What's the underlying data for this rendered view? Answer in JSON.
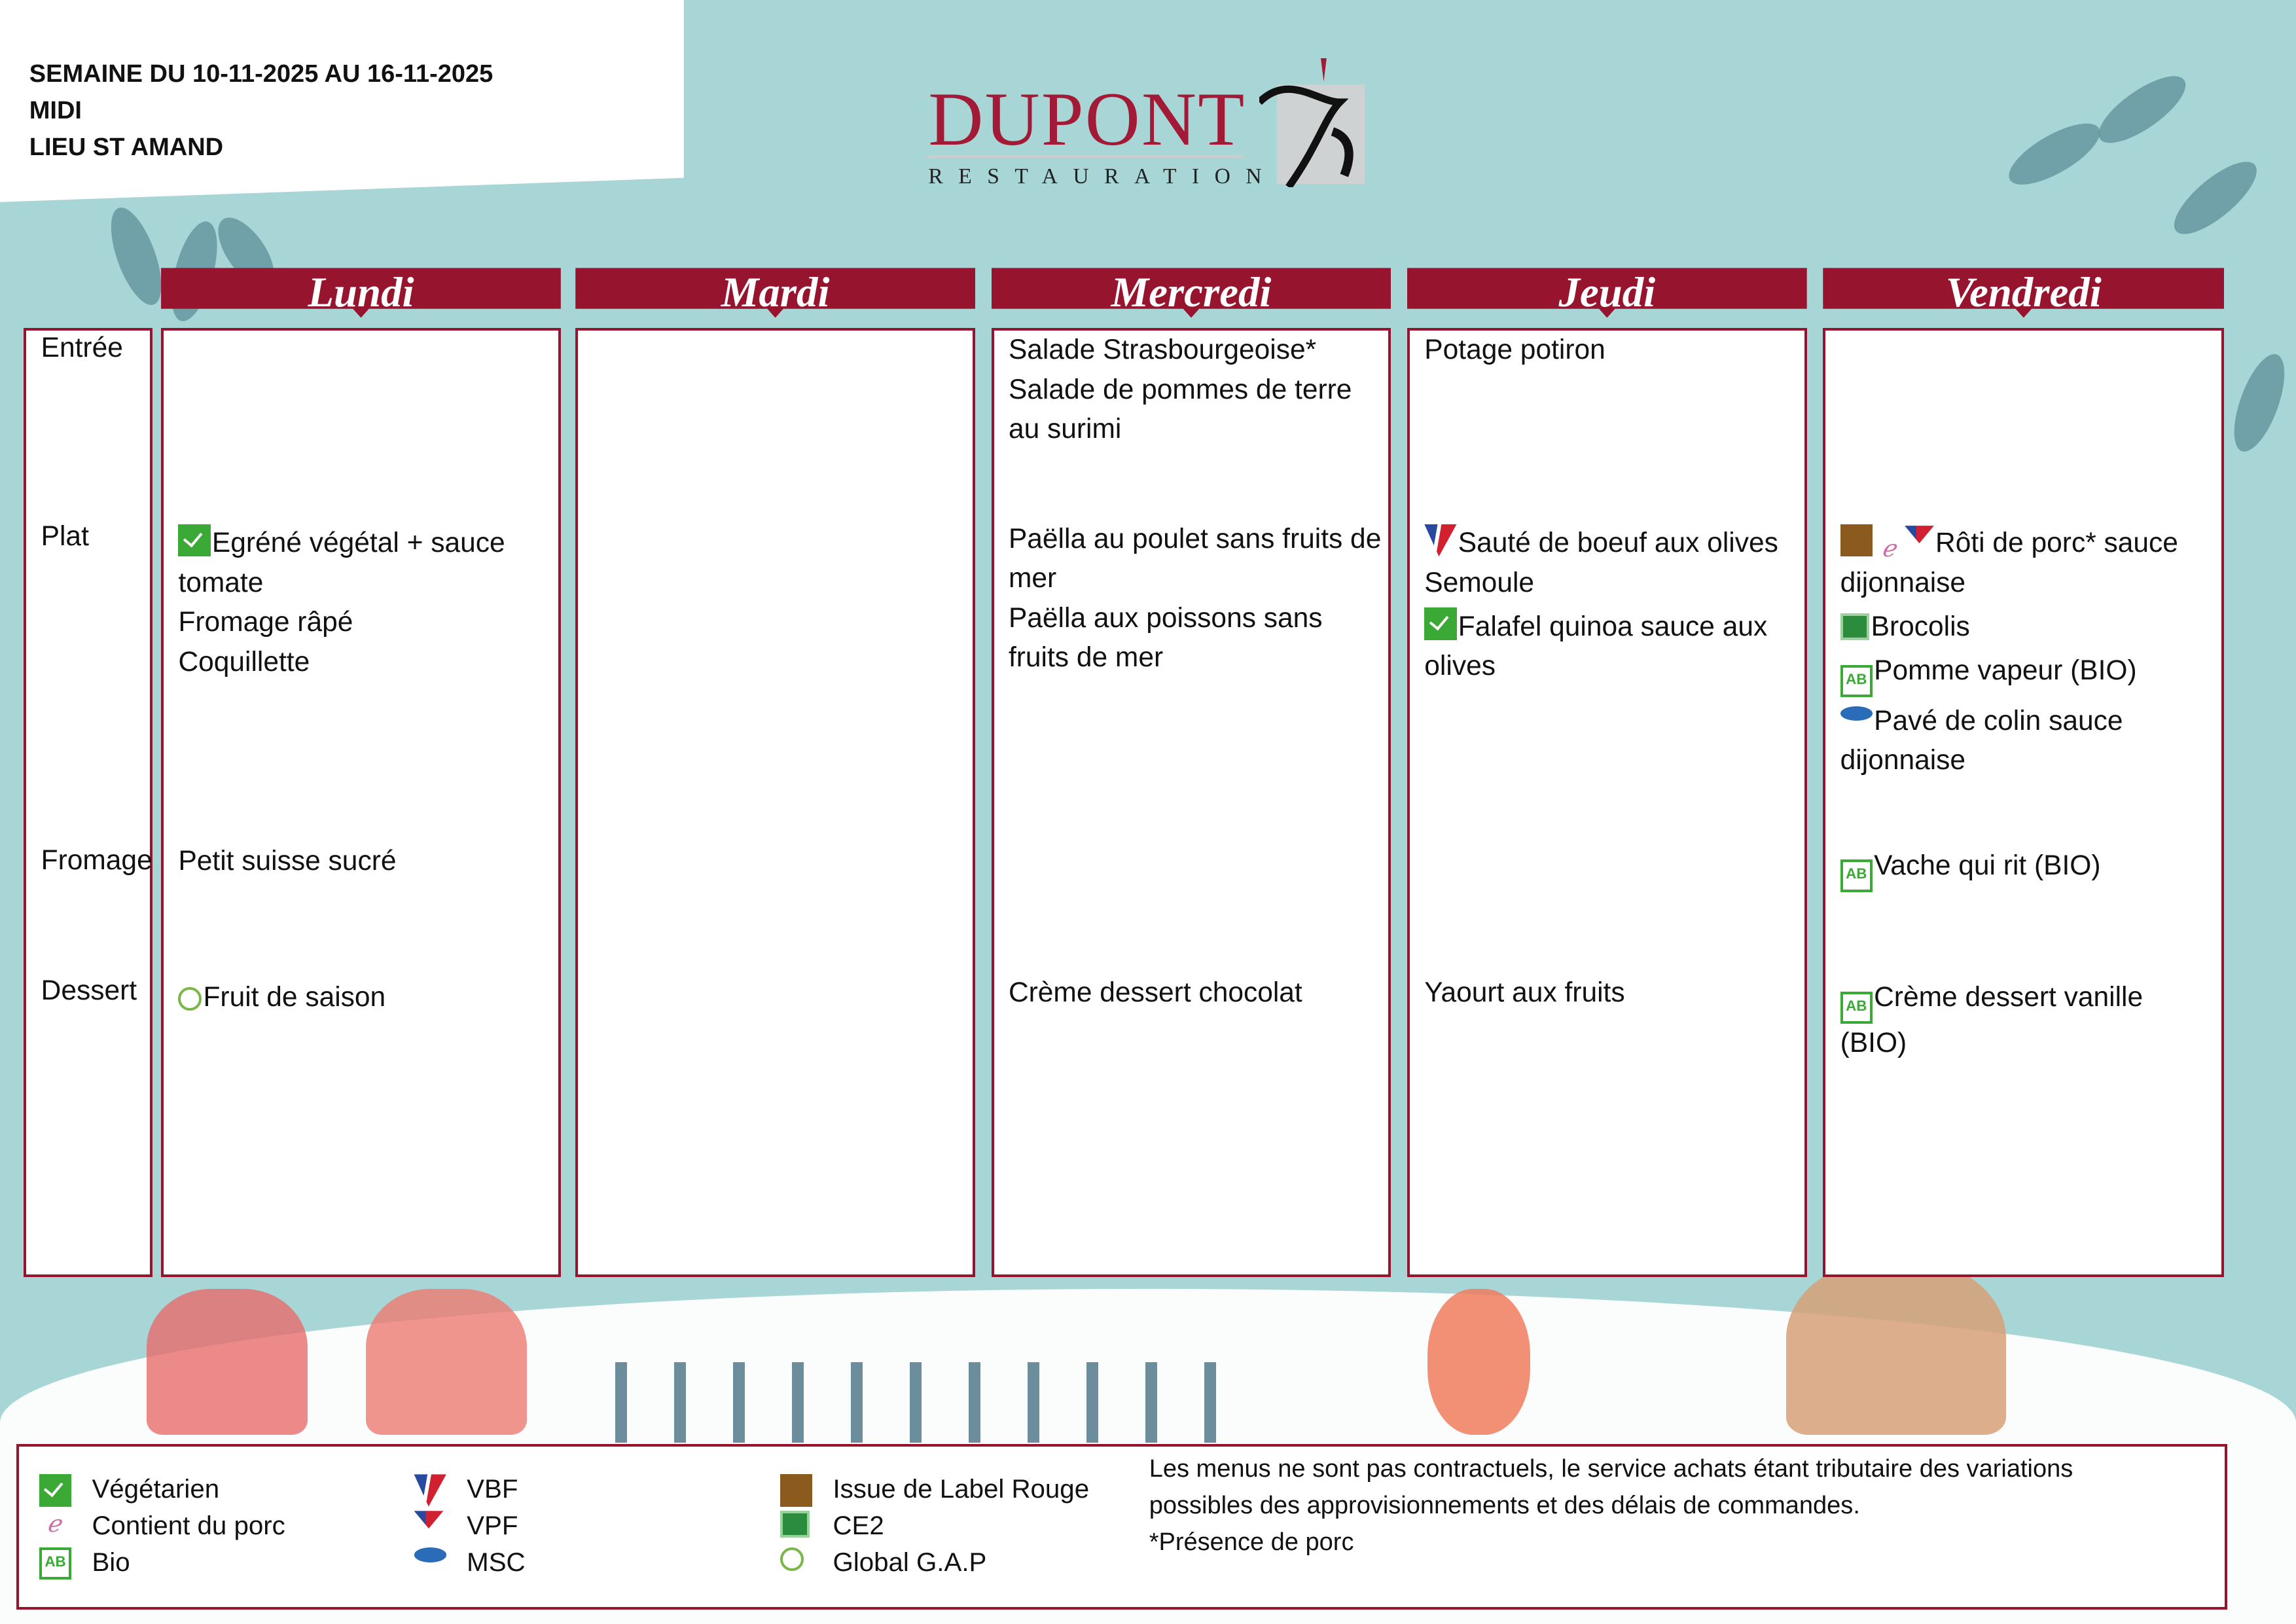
{
  "header": {
    "week": "SEMAINE DU 10-11-2025 AU 16-11-2025",
    "meal": "MIDI",
    "place": "LIEU ST AMAND"
  },
  "logo": {
    "word": "DUPONT",
    "sub": "RESTAURATION"
  },
  "colors": {
    "brand": "#97142f",
    "background": "#a8d5d6",
    "vegetarian": "#3aa935"
  },
  "rows": {
    "entree": "Entrée",
    "plat": "Plat",
    "fromage": "Fromage",
    "dessert": "Dessert"
  },
  "days": [
    {
      "name": "Lundi",
      "entree": [],
      "plat": [
        {
          "icons": [
            "vegetarian"
          ],
          "text": "Egréné végétal + sauce tomate"
        },
        {
          "icons": [],
          "text": "Fromage râpé"
        },
        {
          "icons": [],
          "text": "Coquillette"
        }
      ],
      "fromage": [
        {
          "icons": [],
          "text": "Petit suisse sucré"
        }
      ],
      "dessert": [
        {
          "icons": [
            "global-gap"
          ],
          "text": "Fruit de saison"
        }
      ]
    },
    {
      "name": "Mardi",
      "entree": [],
      "plat": [],
      "fromage": [],
      "dessert": []
    },
    {
      "name": "Mercredi",
      "entree": [
        {
          "icons": [],
          "text": "Salade Strasbourgeoise*"
        },
        {
          "icons": [],
          "text": "Salade de pommes de terre au surimi"
        }
      ],
      "plat": [
        {
          "icons": [],
          "text": "Paëlla au poulet sans fruits de mer"
        },
        {
          "icons": [],
          "text": "Paëlla aux poissons sans fruits de mer"
        }
      ],
      "fromage": [],
      "dessert": [
        {
          "icons": [],
          "text": "Crème dessert chocolat"
        }
      ]
    },
    {
      "name": "Jeudi",
      "entree": [
        {
          "icons": [],
          "text": "Potage potiron"
        }
      ],
      "plat": [
        {
          "icons": [
            "vbf"
          ],
          "text": "Sauté de boeuf aux olives"
        },
        {
          "icons": [],
          "text": "Semoule"
        },
        {
          "icons": [
            "vegetarian"
          ],
          "text": "Falafel quinoa sauce aux olives"
        }
      ],
      "fromage": [],
      "dessert": [
        {
          "icons": [],
          "text": "Yaourt aux fruits"
        }
      ]
    },
    {
      "name": "Vendredi",
      "entree": [],
      "plat": [
        {
          "icons": [
            "label-rouge",
            "porc",
            "vpf"
          ],
          "text": "Rôti de porc* sauce dijonnaise"
        },
        {
          "icons": [
            "ce2"
          ],
          "text": "Brocolis"
        },
        {
          "icons": [
            "bio"
          ],
          "text": "Pomme vapeur (BIO)"
        },
        {
          "icons": [
            "msc"
          ],
          "text": "Pavé de colin sauce dijonnaise"
        }
      ],
      "fromage": [
        {
          "icons": [
            "bio"
          ],
          "text": "Vache qui rit (BIO)"
        }
      ],
      "dessert": [
        {
          "icons": [
            "bio"
          ],
          "text": "Crème dessert vanille (BIO)"
        }
      ]
    }
  ],
  "legend": [
    {
      "icon": "vegetarian",
      "label": "Végétarien"
    },
    {
      "icon": "porc",
      "label": "Contient du porc"
    },
    {
      "icon": "bio",
      "label": "Bio"
    },
    {
      "icon": "vbf",
      "label": "VBF"
    },
    {
      "icon": "vpf",
      "label": "VPF"
    },
    {
      "icon": "msc",
      "label": "MSC"
    },
    {
      "icon": "label-rouge",
      "label": "Issue de Label Rouge"
    },
    {
      "icon": "ce2",
      "label": "CE2"
    },
    {
      "icon": "global-gap",
      "label": "Global G.A.P"
    }
  ],
  "notes": [
    "Les menus ne sont pas contractuels, le service achats étant tributaire des variations",
    "possibles des approvisionnements et des délais de commandes.",
    " *Présence de porc"
  ]
}
